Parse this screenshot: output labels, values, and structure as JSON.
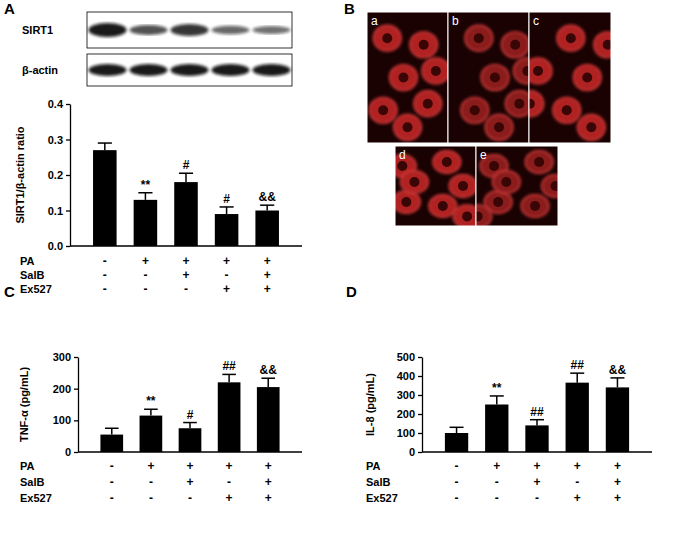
{
  "figure": {
    "panel_labels": [
      "A",
      "B",
      "C",
      "D"
    ],
    "blot_labels": [
      "SIRT1",
      "β-actin"
    ],
    "image_labels": [
      "a",
      "b",
      "c",
      "d",
      "e"
    ]
  },
  "chart_data": [
    {
      "type": "bar",
      "y_label": "SIRT1/β-actin ratio",
      "color": "#000000",
      "categories": [
        null,
        null,
        null,
        null,
        null
      ],
      "values": [
        0.27,
        0.13,
        0.18,
        0.09,
        0.1
      ],
      "errors": [
        0.02,
        0.02,
        0.025,
        0.02,
        0.015
      ],
      "annotations": [
        null,
        "**",
        "#",
        "#",
        "&&"
      ],
      "ylim": [
        0,
        0.4
      ],
      "yticks": [
        {
          "value": 0,
          "label": "0.0"
        },
        0.1,
        0.2,
        0.3,
        0.4
      ],
      "treatment_table": {
        "rows": [
          "PA",
          "SalB",
          "Ex527"
        ],
        "signs": [
          [
            "-",
            "+",
            "+",
            "+",
            "+"
          ],
          [
            "-",
            "-",
            "+",
            "-",
            "+"
          ],
          [
            "-",
            "-",
            "-",
            "+",
            "+"
          ]
        ]
      }
    },
    {
      "type": "bar",
      "y_label": "TNF-α (pg/mL)",
      "color": "#000000",
      "categories": [
        null,
        null,
        null,
        null,
        null
      ],
      "values": [
        55,
        115,
        75,
        220,
        205
      ],
      "errors": [
        20,
        20,
        18,
        25,
        28
      ],
      "annotations": [
        null,
        "**",
        "#",
        "##",
        "&&"
      ],
      "ylim": [
        0,
        300
      ],
      "yticks": [
        0,
        100,
        200,
        300
      ],
      "treatment_table": {
        "rows": [
          "PA",
          "SalB",
          "Ex527"
        ],
        "signs": [
          [
            "-",
            "+",
            "+",
            "+",
            "+"
          ],
          [
            "-",
            "-",
            "+",
            "-",
            "+"
          ],
          [
            "-",
            "-",
            "-",
            "+",
            "+"
          ]
        ]
      }
    },
    {
      "type": "bar",
      "y_label": "IL-8 (pg/mL)",
      "color": "#000000",
      "categories": [
        null,
        null,
        null,
        null,
        null
      ],
      "values": [
        100,
        250,
        140,
        365,
        340
      ],
      "errors": [
        30,
        45,
        30,
        50,
        50
      ],
      "annotations": [
        null,
        "**",
        "##",
        "##",
        "&&"
      ],
      "ylim": [
        0,
        500
      ],
      "yticks": [
        0,
        100,
        200,
        300,
        400,
        500
      ],
      "treatment_table": {
        "rows": [
          "PA",
          "SalB",
          "Ex527"
        ],
        "signs": [
          [
            "-",
            "+",
            "+",
            "+",
            "+"
          ],
          [
            "-",
            "-",
            "+",
            "-",
            "+"
          ],
          [
            "-",
            "-",
            "-",
            "+",
            "+"
          ]
        ]
      }
    }
  ]
}
